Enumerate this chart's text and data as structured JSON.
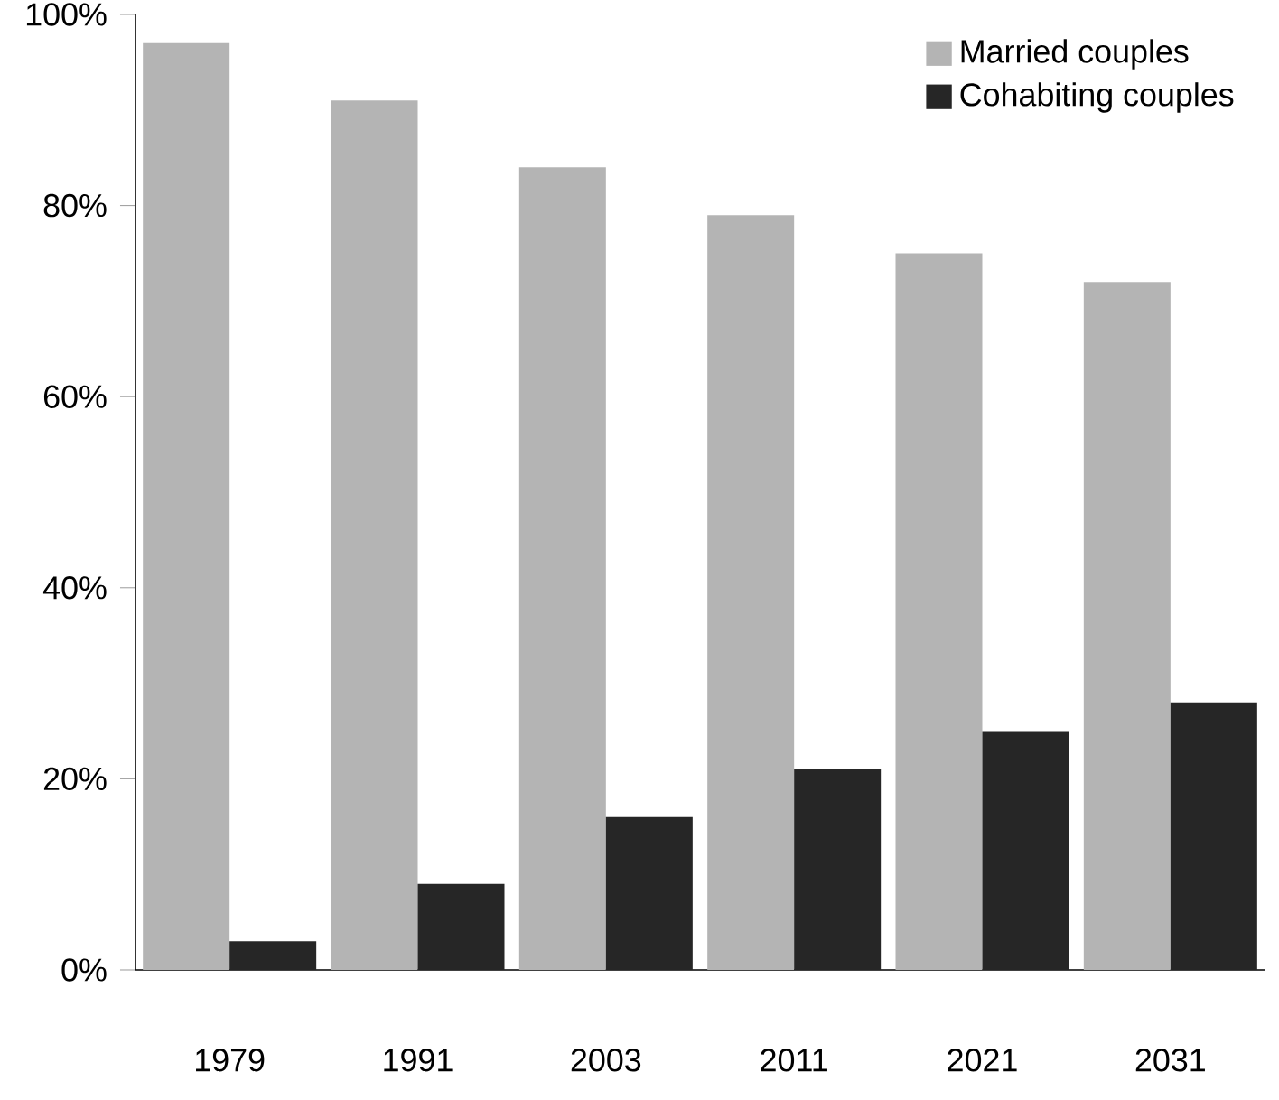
{
  "chart_data": {
    "type": "bar",
    "categories": [
      "1979",
      "1991",
      "2003",
      "2011",
      "2021",
      "2031"
    ],
    "series": [
      {
        "name": "Married couples",
        "color": "#b4b4b4",
        "values": [
          97,
          91,
          84,
          79,
          75,
          72
        ]
      },
      {
        "name": "Cohabiting couples",
        "color": "#262626",
        "values": [
          3,
          9,
          16,
          21,
          25,
          28
        ]
      }
    ],
    "ylim": [
      0,
      100
    ],
    "yticks": [
      {
        "value": 0,
        "label": "0%"
      },
      {
        "value": 20,
        "label": "20%"
      },
      {
        "value": 40,
        "label": "40%"
      },
      {
        "value": 60,
        "label": "60%"
      },
      {
        "value": 80,
        "label": "80%"
      },
      {
        "value": 100,
        "label": "100%"
      }
    ],
    "grid": false,
    "legend": "top right"
  }
}
